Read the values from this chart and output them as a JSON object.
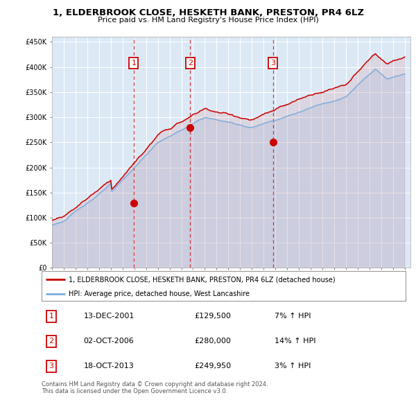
{
  "title": "1, ELDERBROOK CLOSE, HESKETH BANK, PRESTON, PR4 6LZ",
  "subtitle": "Price paid vs. HM Land Registry's House Price Index (HPI)",
  "legend_label_red": "1, ELDERBROOK CLOSE, HESKETH BANK, PRESTON, PR4 6LZ (detached house)",
  "legend_label_blue": "HPI: Average price, detached house, West Lancashire",
  "footer": "Contains HM Land Registry data © Crown copyright and database right 2024.\nThis data is licensed under the Open Government Licence v3.0.",
  "sale_years": [
    2001.95,
    2006.75,
    2013.79
  ],
  "sale_prices": [
    129500,
    280000,
    249950
  ],
  "sale_nums": [
    1,
    2,
    3
  ],
  "ylim": [
    0,
    460000
  ],
  "yticks": [
    0,
    50000,
    100000,
    150000,
    200000,
    250000,
    300000,
    350000,
    400000,
    450000
  ],
  "xlim_start": 1995,
  "xlim_end": 2025.5,
  "background_color": "#ffffff",
  "plot_bg_color": "#dce9f5",
  "grid_color": "#ffffff",
  "red_color": "#cc0000",
  "blue_color": "#7aaadd",
  "table_entries": [
    {
      "num": "1",
      "date": "13-DEC-2001",
      "price": "£129,500",
      "pct": "7% ↑ HPI"
    },
    {
      "num": "2",
      "date": "02-OCT-2006",
      "price": "£280,000",
      "pct": "14% ↑ HPI"
    },
    {
      "num": "3",
      "date": "18-OCT-2013",
      "price": "£249,950",
      "pct": "3% ↑ HPI"
    }
  ]
}
